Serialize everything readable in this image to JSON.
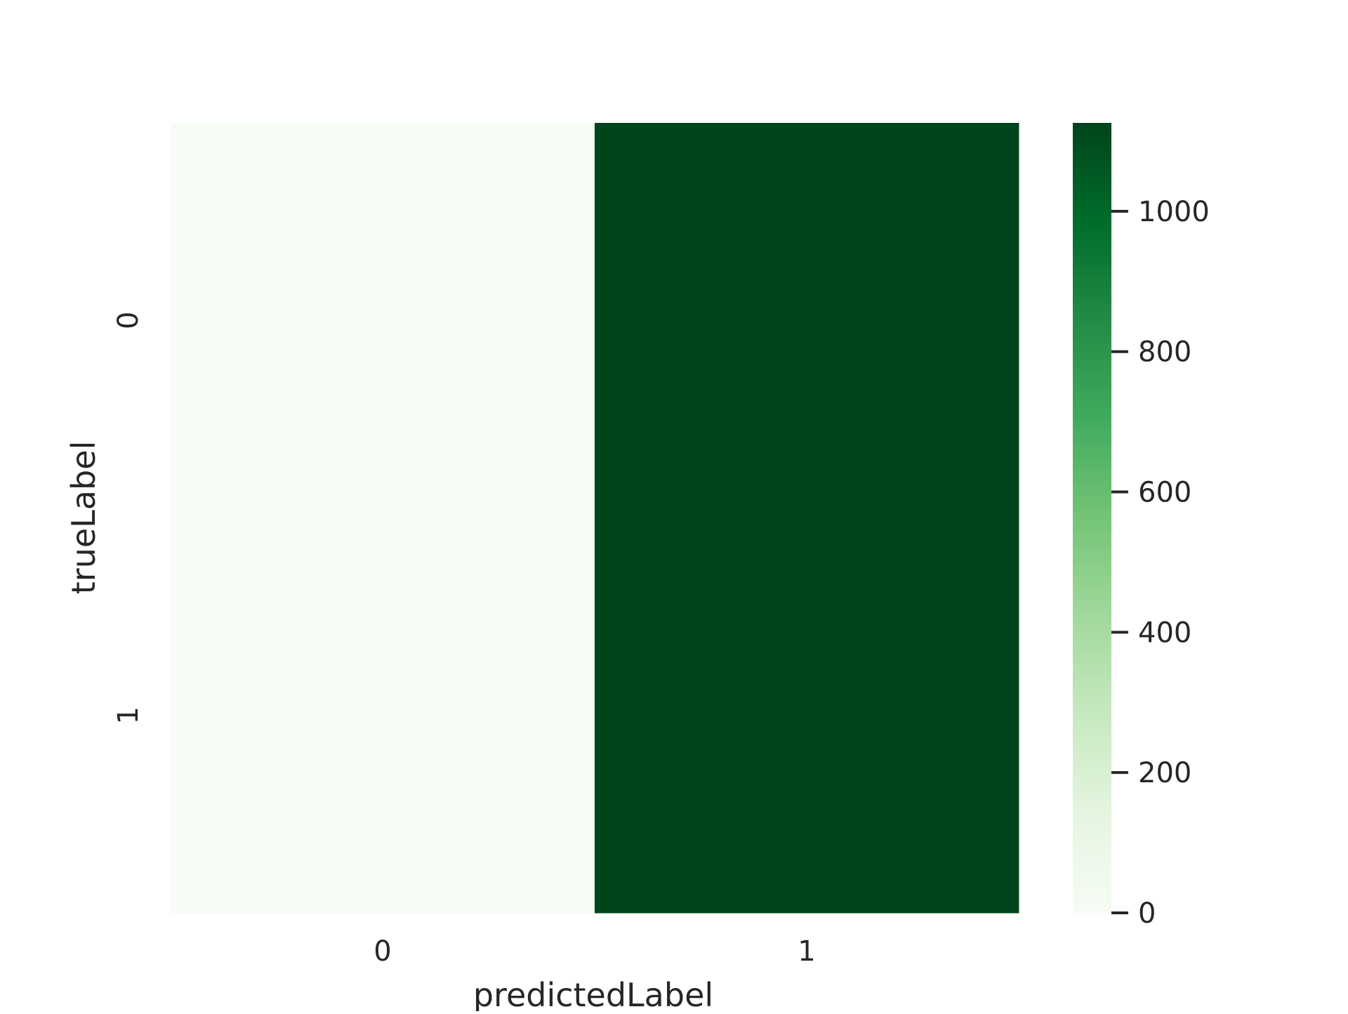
{
  "chart_data": {
    "type": "heatmap",
    "title": "",
    "xlabel": "predictedLabel",
    "ylabel": "trueLabel",
    "x_categories": [
      "0",
      "1"
    ],
    "y_categories": [
      "0",
      "1"
    ],
    "values": [
      [
        0,
        1126
      ],
      [
        0,
        1126
      ]
    ],
    "colormap": "Greens",
    "colorbar": {
      "min": 0,
      "max": 1126,
      "ticks": [
        0,
        200,
        400,
        600,
        800,
        1000
      ],
      "tick_labels": [
        "0",
        "200",
        "400",
        "600",
        "800",
        "1000"
      ]
    },
    "annotations": false,
    "grid": false
  },
  "colors": {
    "low": "#f7fcf5",
    "high": "#00441b",
    "text": "#262626"
  }
}
